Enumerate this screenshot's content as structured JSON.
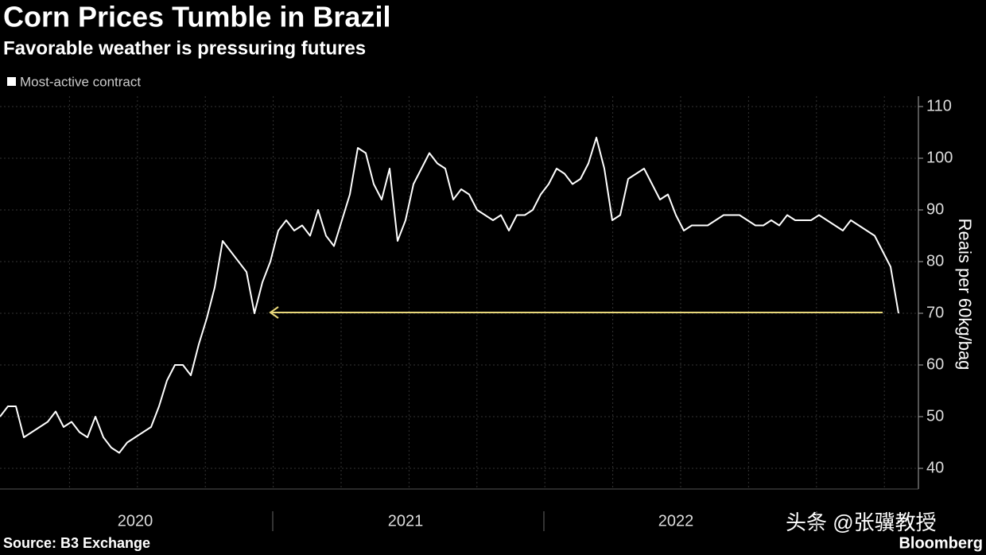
{
  "chart_data": {
    "type": "line",
    "title": "Corn Prices Tumble in Brazil",
    "subtitle": "Favorable weather is pressuring futures",
    "y_label": "Reais per 60kg/bag",
    "source": "Source: B3 Exchange",
    "brand": "Bloomberg",
    "watermark": "头条 @张骥教授",
    "categories": [
      null,
      null,
      null,
      null,
      null,
      null,
      null,
      null,
      null,
      null,
      null,
      null,
      null,
      null,
      null,
      null,
      null,
      "2020",
      null,
      null,
      null,
      null,
      null,
      null,
      null,
      null,
      null,
      null,
      null,
      null,
      null,
      null,
      null,
      null,
      null,
      null,
      null,
      null,
      null,
      null,
      null,
      null,
      null,
      null,
      null,
      null,
      null,
      null,
      null,
      null,
      null,
      "2021",
      null,
      null,
      null,
      null,
      null,
      null,
      null,
      null,
      null,
      null,
      null,
      null,
      null,
      null,
      null,
      null,
      null,
      null,
      null,
      null,
      null,
      null,
      null,
      null,
      null,
      null,
      null,
      null,
      null,
      null,
      null,
      null,
      null,
      "2022",
      null,
      null,
      null,
      null,
      null,
      null,
      null,
      null,
      null,
      null,
      null,
      null,
      null,
      null,
      null,
      null,
      null,
      null,
      null,
      null,
      null,
      null,
      null,
      null,
      null,
      null,
      null,
      null
    ],
    "series": [
      {
        "name": "Most-active contract",
        "color": "#ffffff",
        "values": [
          50,
          52,
          52,
          46,
          47,
          48,
          49,
          51,
          48,
          49,
          47,
          46,
          50,
          46,
          44,
          43,
          45,
          46,
          47,
          48,
          52,
          57,
          60,
          60,
          58,
          64,
          69,
          75,
          84,
          82,
          80,
          78,
          70,
          76,
          80,
          86,
          88,
          86,
          87,
          85,
          90,
          85,
          83,
          88,
          93,
          102,
          101,
          95,
          92,
          98,
          84,
          88,
          95,
          98,
          101,
          99,
          98,
          92,
          94,
          93,
          90,
          89,
          88,
          89,
          86,
          89,
          89,
          90,
          93,
          95,
          98,
          97,
          95,
          96,
          99,
          104,
          98,
          88,
          89,
          96,
          97,
          98,
          95,
          92,
          93,
          89,
          86,
          87,
          87,
          87,
          88,
          89,
          89,
          89,
          88,
          87,
          87,
          88,
          87,
          89,
          88,
          88,
          88,
          89,
          88,
          87,
          86,
          88,
          87,
          86,
          85,
          82,
          79,
          70
        ]
      }
    ],
    "ylim": [
      36,
      112
    ],
    "yticks": [
      40,
      50,
      60,
      70,
      80,
      90,
      100,
      110
    ],
    "grid": true
  }
}
